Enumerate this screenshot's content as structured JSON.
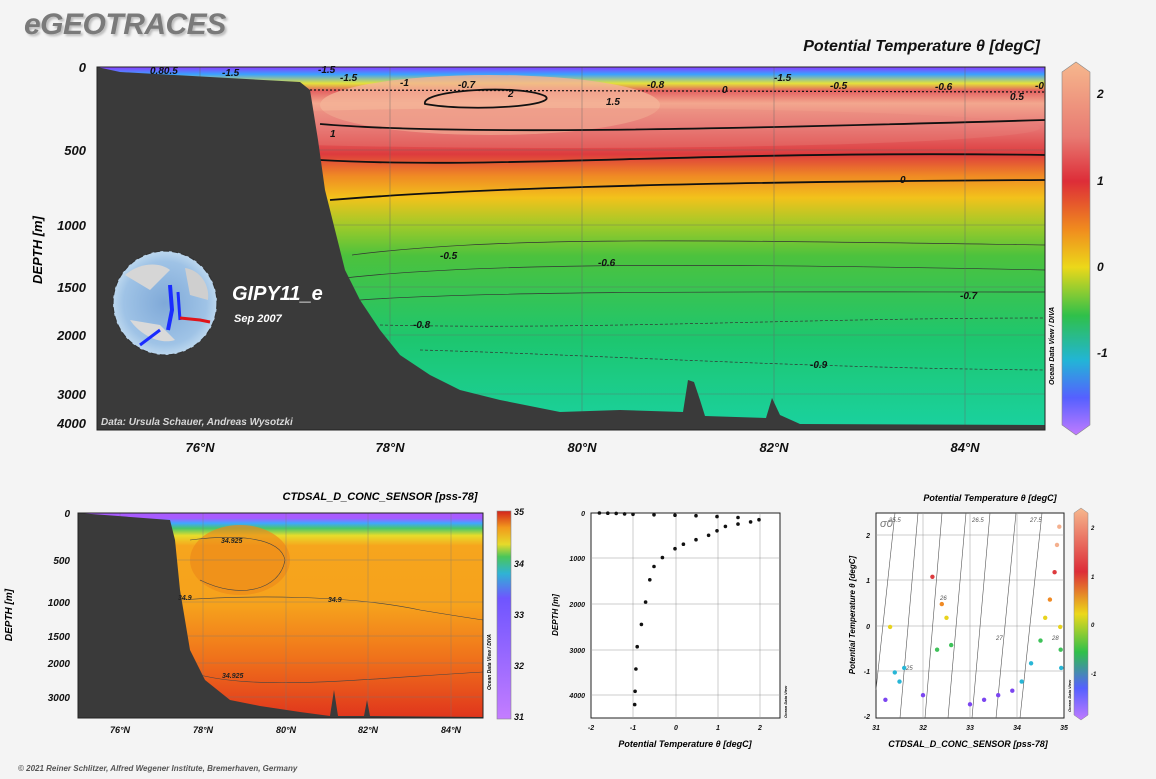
{
  "brand": "eGEOTRACES",
  "footer": "© 2021 Reiner Schlitzer, Alfred Wegener Institute, Bremerhaven, Germany",
  "credit": "Data: Ursula Schauer, Andreas Wysotzki",
  "cruise": {
    "name": "GIPY11_e",
    "date": "Sep 2007"
  },
  "watermark": "Ocean Data View / DIVA",
  "watermark_small": "Ocean Data View",
  "main_section": {
    "title": "Potential Temperature θ [degC]",
    "ylabel": "DEPTH [m]",
    "yticks": [
      "0",
      "500",
      "1000",
      "1500",
      "2000",
      "3000",
      "4000"
    ],
    "xticks": [
      "76°N",
      "78°N",
      "80°N",
      "82°N",
      "84°N"
    ],
    "colorbar": {
      "ticks": [
        "2",
        "1",
        "0",
        "-1"
      ],
      "range": [
        -1.8,
        2.3
      ]
    },
    "contour_labels": [
      "-1.5",
      "-1.5",
      "-1.5",
      "-1",
      "-0.7",
      "-0.8",
      "0",
      "-1.5",
      "-0.5",
      "-0.6",
      "-0",
      "0.5",
      "2",
      "1.5",
      "1",
      "0",
      "-0.5",
      "-0.6",
      "-0.7",
      "-0.8",
      "-0.9",
      "0.80.5"
    ]
  },
  "salinity_section": {
    "title": "CTDSAL_D_CONC_SENSOR [pss-78]",
    "ylabel": "DEPTH [m]",
    "yticks": [
      "0",
      "500",
      "1000",
      "1500",
      "2000",
      "3000"
    ],
    "xticks": [
      "76°N",
      "78°N",
      "80°N",
      "82°N",
      "84°N"
    ],
    "colorbar": {
      "ticks": [
        "35",
        "34",
        "33",
        "32",
        "31"
      ],
      "range": [
        31,
        35
      ]
    },
    "contour_labels": [
      "34.925",
      "34.9",
      "34.9",
      "34.925"
    ]
  },
  "profile_plot": {
    "xlabel": "Potential Temperature θ [degC]",
    "ylabel": "DEPTH [m]",
    "xticks": [
      "-2",
      "-1",
      "0",
      "1",
      "2"
    ],
    "yticks": [
      "0",
      "1000",
      "2000",
      "3000",
      "4000"
    ]
  },
  "ts_plot": {
    "title": "Potential Temperature θ [degC]",
    "xlabel": "CTDSAL_D_CONC_SENSOR [pss-78]",
    "ylabel": "Potential Temperature θ [degC]",
    "sigma_label": "σ0",
    "xticks": [
      "31",
      "32",
      "33",
      "34",
      "35"
    ],
    "yticks": [
      "2",
      "1",
      "0",
      "-1",
      "-2"
    ],
    "colorbar_ticks": [
      "2",
      "1",
      "0",
      "-1"
    ],
    "isopycnals": [
      "25",
      "25.5",
      "26",
      "26.5",
      "27",
      "27.5",
      "28"
    ]
  },
  "chart_data": [
    {
      "type": "heatmap",
      "title": "Potential Temperature θ [degC]",
      "xlabel": "",
      "ylabel": "DEPTH [m]",
      "xlim": [
        75,
        85
      ],
      "ylim": [
        4100,
        0
      ],
      "x_ticks": [
        76,
        78,
        80,
        82,
        84
      ],
      "y_ticks": [
        0,
        500,
        1000,
        1500,
        2000,
        3000,
        4000
      ],
      "layers": [
        {
          "depth": 0,
          "value": -1.6
        },
        {
          "depth": 50,
          "value": -1.5
        },
        {
          "depth": 120,
          "value": 1.0
        },
        {
          "depth": 250,
          "value": 2.0
        },
        {
          "depth": 500,
          "value": 1.0
        },
        {
          "depth": 800,
          "value": 0.0
        },
        {
          "depth": 1300,
          "value": -0.5
        },
        {
          "depth": 2000,
          "value": -0.7
        },
        {
          "depth": 3000,
          "value": -0.9
        },
        {
          "depth": 4100,
          "value": -0.95
        }
      ]
    },
    {
      "type": "heatmap",
      "title": "CTDSAL_D_CONC_SENSOR [pss-78]",
      "ylabel": "DEPTH [m]",
      "xlim": [
        75,
        85
      ],
      "ylim": [
        3500,
        0
      ],
      "layers": [
        {
          "depth": 0,
          "value": 31.5
        },
        {
          "depth": 60,
          "value": 33.8
        },
        {
          "depth": 150,
          "value": 34.8
        },
        {
          "depth": 400,
          "value": 34.93
        },
        {
          "depth": 1000,
          "value": 34.9
        },
        {
          "depth": 2000,
          "value": 34.92
        },
        {
          "depth": 3500,
          "value": 34.94
        }
      ]
    },
    {
      "type": "scatter",
      "xlabel": "Potential Temperature θ [degC]",
      "ylabel": "DEPTH [m]",
      "xlim": [
        -2,
        2.5
      ],
      "ylim": [
        4600,
        0
      ],
      "points": [
        [
          -1.8,
          0
        ],
        [
          -1.6,
          5
        ],
        [
          -1.4,
          10
        ],
        [
          -1.2,
          20
        ],
        [
          -1.0,
          30
        ],
        [
          -0.5,
          40
        ],
        [
          0,
          50
        ],
        [
          0.5,
          60
        ],
        [
          1.0,
          80
        ],
        [
          1.5,
          100
        ],
        [
          2.0,
          150
        ],
        [
          1.8,
          200
        ],
        [
          1.5,
          250
        ],
        [
          1.2,
          300
        ],
        [
          1.0,
          400
        ],
        [
          0.8,
          500
        ],
        [
          0.5,
          600
        ],
        [
          0.2,
          700
        ],
        [
          0.0,
          800
        ],
        [
          -0.3,
          1000
        ],
        [
          -0.5,
          1200
        ],
        [
          -0.6,
          1500
        ],
        [
          -0.7,
          2000
        ],
        [
          -0.8,
          2500
        ],
        [
          -0.9,
          3000
        ],
        [
          -0.93,
          3500
        ],
        [
          -0.95,
          4000
        ],
        [
          -0.96,
          4300
        ]
      ]
    },
    {
      "type": "scatter",
      "xlabel": "CTDSAL_D_CONC_SENSOR [pss-78]",
      "ylabel": "Potential Temperature θ [degC]",
      "xlim": [
        31,
        35
      ],
      "ylim": [
        -2,
        2.5
      ],
      "points": [
        [
          31.2,
          -1.6
        ],
        [
          31.3,
          0.0
        ],
        [
          31.4,
          -1.0
        ],
        [
          31.5,
          -1.2
        ],
        [
          31.6,
          -0.9
        ],
        [
          32.0,
          -1.5
        ],
        [
          32.2,
          1.1
        ],
        [
          32.3,
          -0.5
        ],
        [
          32.4,
          0.5
        ],
        [
          32.5,
          0.2
        ],
        [
          32.6,
          -0.4
        ],
        [
          33.0,
          -1.7
        ],
        [
          33.3,
          -1.6
        ],
        [
          33.6,
          -1.5
        ],
        [
          33.9,
          -1.4
        ],
        [
          34.1,
          -1.2
        ],
        [
          34.3,
          -0.8
        ],
        [
          34.5,
          -0.3
        ],
        [
          34.6,
          0.2
        ],
        [
          34.7,
          0.6
        ],
        [
          34.8,
          1.2
        ],
        [
          34.85,
          1.8
        ],
        [
          34.9,
          2.2
        ],
        [
          34.92,
          0.0
        ],
        [
          34.93,
          -0.5
        ],
        [
          34.94,
          -0.9
        ]
      ]
    }
  ]
}
